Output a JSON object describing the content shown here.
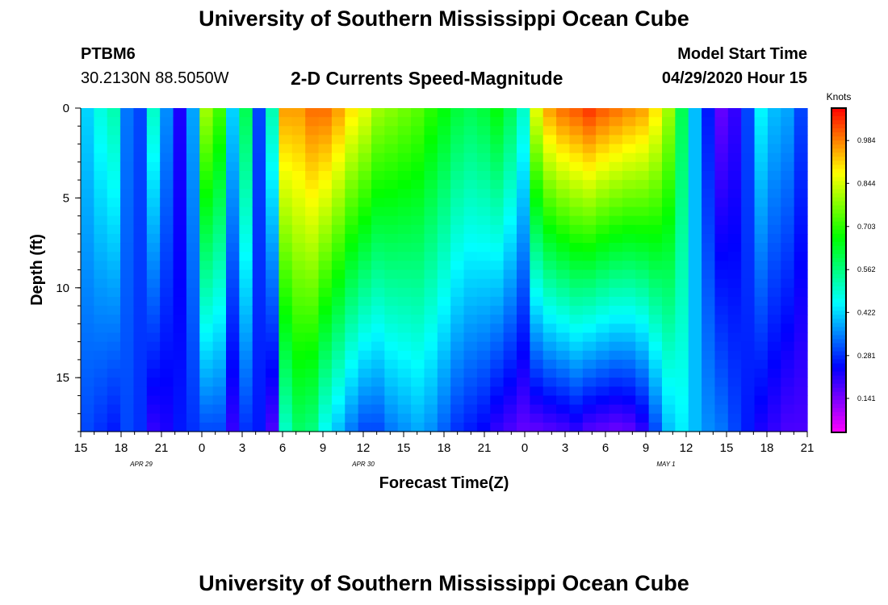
{
  "page": {
    "title_top": "University of Southern Mississippi Ocean Cube",
    "title_bottom": "University of Southern Mississippi Ocean Cube",
    "station": "PTBM6",
    "coords": "30.2130N 88.5050W",
    "product": "2-D Currents Speed-Magnitude",
    "model_start_label": "Model Start Time",
    "model_start_value": "04/29/2020 Hour 15"
  },
  "chart_data": {
    "type": "heatmap",
    "xlabel": "Forecast Time(Z)",
    "ylabel": "Depth (ft)",
    "colorbar_label": "Knots",
    "x_hours_range": [
      0,
      54
    ],
    "y_range": [
      0,
      18
    ],
    "y_ticks": [
      0,
      5,
      10,
      15
    ],
    "x_tick_labels": [
      "15",
      "18",
      "21",
      "0",
      "3",
      "6",
      "9",
      "12",
      "15",
      "18",
      "21",
      "0",
      "3",
      "6",
      "9",
      "12",
      "15",
      "18",
      "21"
    ],
    "date_labels": [
      {
        "text": "APR 29",
        "tick_index": 1.5
      },
      {
        "text": "APR 30",
        "tick_index": 7
      },
      {
        "text": "MAY 1",
        "tick_index": 14.5
      }
    ],
    "colorbar_ticks": [
      0.984,
      0.844,
      0.703,
      0.562,
      0.422,
      0.281,
      0.141
    ],
    "colorbar_range": [
      0.03,
      1.09
    ],
    "surface_speed_knots": [
      0.42,
      0.48,
      0.52,
      0.34,
      0.3,
      0.5,
      0.36,
      0.22,
      0.38,
      0.8,
      0.72,
      0.42,
      0.6,
      0.3,
      0.52,
      0.96,
      0.96,
      1.0,
      1.0,
      0.96,
      0.9,
      0.86,
      0.8,
      0.78,
      0.76,
      0.74,
      0.7,
      0.66,
      0.62,
      0.6,
      0.62,
      0.66,
      0.6,
      0.5,
      0.86,
      0.96,
      1.0,
      1.02,
      1.05,
      1.02,
      1.0,
      0.98,
      0.96,
      0.9,
      0.8,
      0.6,
      0.4,
      0.26,
      0.16,
      0.2,
      0.3,
      0.45,
      0.4,
      0.38,
      0.3
    ],
    "bottom_speed_knots": [
      0.3,
      0.28,
      0.26,
      0.3,
      0.28,
      0.2,
      0.22,
      0.26,
      0.28,
      0.3,
      0.3,
      0.2,
      0.28,
      0.26,
      0.18,
      0.5,
      0.58,
      0.56,
      0.46,
      0.4,
      0.34,
      0.3,
      0.3,
      0.34,
      0.36,
      0.38,
      0.36,
      0.32,
      0.28,
      0.26,
      0.24,
      0.2,
      0.18,
      0.16,
      0.16,
      0.17,
      0.18,
      0.2,
      0.17,
      0.16,
      0.15,
      0.16,
      0.2,
      0.3,
      0.4,
      0.44,
      0.4,
      0.36,
      0.34,
      0.3,
      0.26,
      0.22,
      0.2,
      0.18,
      0.18
    ]
  }
}
